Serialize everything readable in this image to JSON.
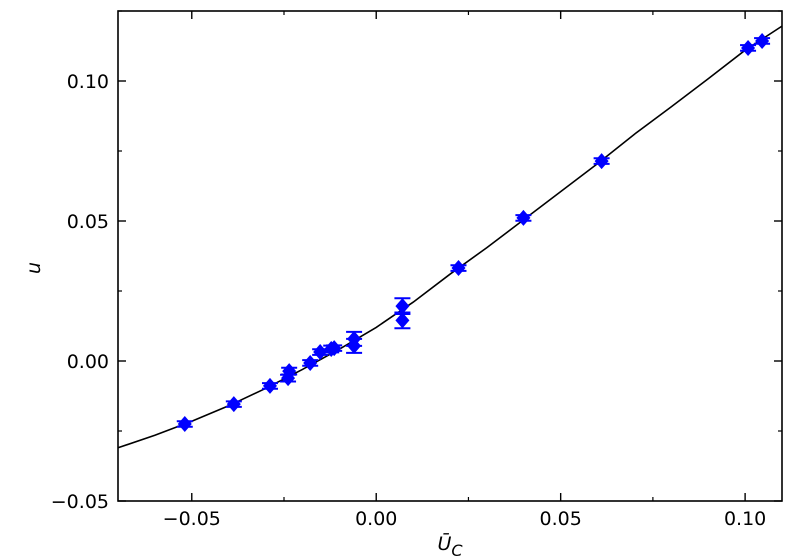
{
  "chart_data": {
    "type": "scatter",
    "x_label": {
      "text": "Ū",
      "subscript": "C"
    },
    "y_label": "u",
    "xlim": [
      -0.07,
      0.11
    ],
    "ylim": [
      -0.05,
      0.125
    ],
    "xticks": [
      {
        "value": -0.05,
        "label": "−0.05"
      },
      {
        "value": 0,
        "label": "0.00"
      },
      {
        "value": 0.05,
        "label": "0.05"
      },
      {
        "value": 0.1,
        "label": "0.10"
      }
    ],
    "yticks": [
      {
        "value": -0.05,
        "label": "−0.05"
      },
      {
        "value": 0,
        "label": "0.00"
      },
      {
        "value": 0.05,
        "label": "0.05"
      },
      {
        "value": 0.1,
        "label": "0.10"
      }
    ],
    "xminorticks": [
      -0.025,
      0.025,
      0.075
    ],
    "yminorticks": [
      -0.025,
      0.025,
      0.075,
      0.125
    ],
    "series": [
      {
        "color": "#0000ff",
        "x": [
          -0.0519,
          -0.0386,
          -0.0288,
          -0.0239,
          -0.0236,
          -0.0179,
          -0.0152,
          -0.0122,
          -0.0114,
          -0.006,
          -0.006,
          0.0071,
          0.0071,
          0.0223,
          0.0399,
          0.0611,
          0.1008,
          0.1046
        ],
        "values": [
          -0.0225,
          -0.0154,
          -0.0089,
          -0.0061,
          -0.0036,
          -0.0007,
          0.0032,
          0.0043,
          0.0046,
          0.0079,
          0.0054,
          0.0196,
          0.0145,
          0.0332,
          0.0511,
          0.0714,
          0.1118,
          0.1143
        ],
        "errors": [
          0.001,
          0.001,
          0.001,
          0.0012,
          0.0012,
          0.001,
          0.001,
          0.0012,
          0.001,
          0.0025,
          0.0025,
          0.0028,
          0.0028,
          0.001,
          0.001,
          0.001,
          0.001,
          0.001
        ]
      }
    ],
    "fit": {
      "color": "#000000",
      "x": [
        -0.07,
        -0.06,
        -0.05,
        -0.04,
        -0.03,
        -0.02,
        -0.01,
        0,
        0.01,
        0.02,
        0.03,
        0.04,
        0.05,
        0.06,
        0.07,
        0.08,
        0.09,
        0.1,
        0.11
      ],
      "values": [
        -0.031,
        -0.0265,
        -0.0215,
        -0.016,
        -0.0098,
        -0.003,
        0.0042,
        0.012,
        0.021,
        0.031,
        0.0405,
        0.0505,
        0.0605,
        0.0705,
        0.081,
        0.0908,
        0.1008,
        0.111,
        0.1196
      ]
    }
  }
}
